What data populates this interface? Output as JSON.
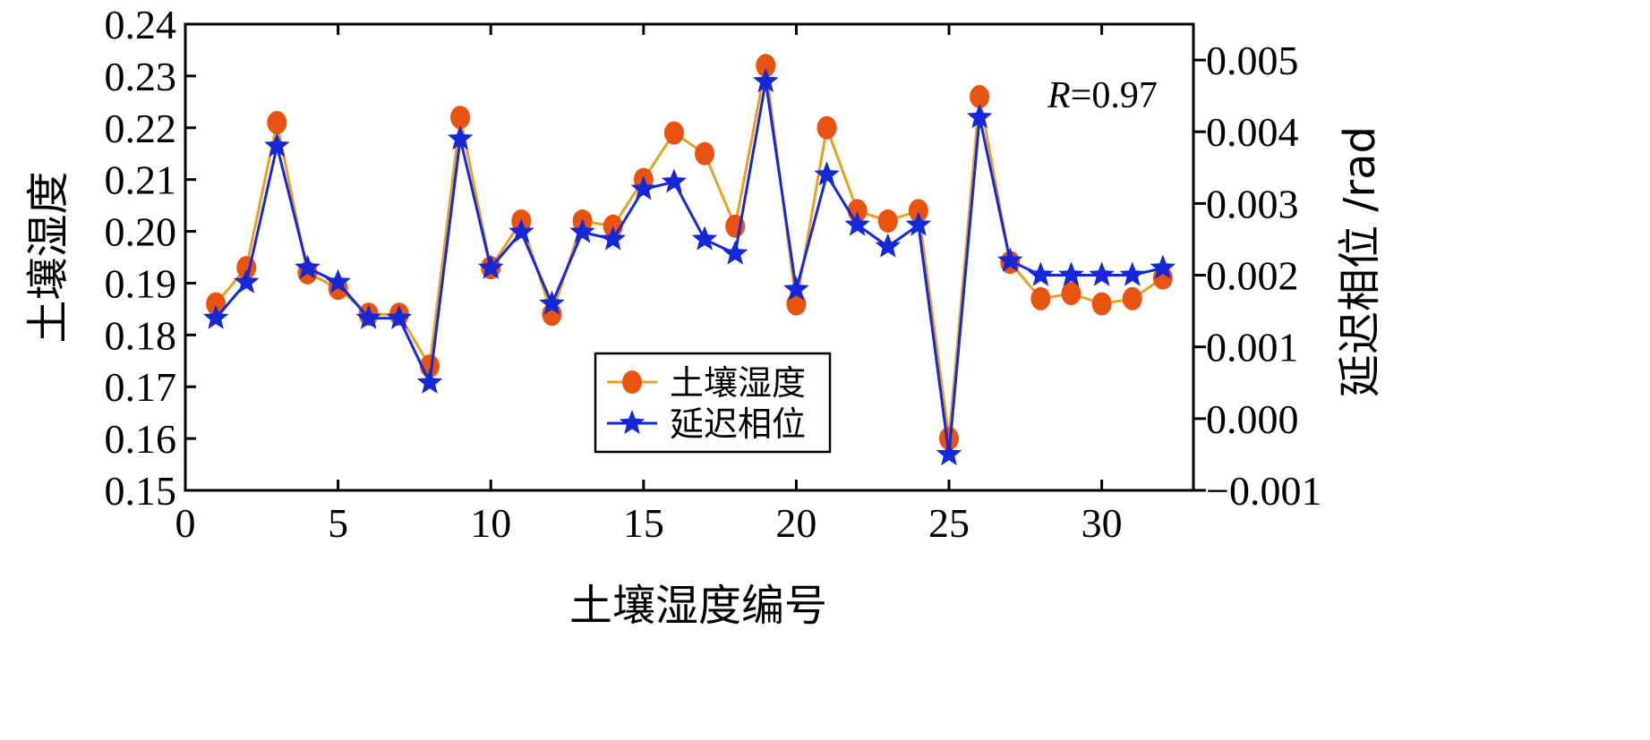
{
  "chart_data": {
    "type": "line",
    "x": [
      1,
      2,
      3,
      4,
      5,
      6,
      7,
      8,
      9,
      10,
      11,
      12,
      13,
      14,
      15,
      16,
      17,
      18,
      19,
      20,
      21,
      22,
      23,
      24,
      25,
      26,
      27,
      28,
      29,
      30,
      31,
      32
    ],
    "series": [
      {
        "name": "土壤湿度",
        "axis": "left",
        "color": "#e8540f",
        "line_color": "#e8a020",
        "marker": "circle",
        "values": [
          0.186,
          0.193,
          0.221,
          0.192,
          0.189,
          0.184,
          0.184,
          0.174,
          0.222,
          0.193,
          0.202,
          0.184,
          0.202,
          0.201,
          0.21,
          0.219,
          0.215,
          0.201,
          0.232,
          0.186,
          0.22,
          0.204,
          0.202,
          0.204,
          0.16,
          0.226,
          0.194,
          0.187,
          0.188,
          0.186,
          0.187,
          0.191
        ]
      },
      {
        "name": "延迟相位",
        "axis": "right",
        "color": "#1428d8",
        "line_color": "#1428d8",
        "marker": "star",
        "values": [
          0.0014,
          0.0019,
          0.0038,
          0.0021,
          0.0019,
          0.0014,
          0.0014,
          0.0005,
          0.0039,
          0.0021,
          0.0026,
          0.0016,
          0.0026,
          0.0025,
          0.0032,
          0.0033,
          0.0025,
          0.0023,
          0.0047,
          0.0018,
          0.0034,
          0.0027,
          0.0024,
          0.0027,
          -0.0005,
          0.0042,
          0.0022,
          0.002,
          0.002,
          0.002,
          0.002,
          0.0021
        ]
      }
    ],
    "xlabel": "土壤湿度编号",
    "ylabel": "土壤湿度",
    "y2label": "延迟相位 /rad",
    "xlim": [
      0,
      33
    ],
    "ylim": [
      0.15,
      0.24
    ],
    "y2lim": [
      -0.001,
      0.0055
    ],
    "xticks": [
      "0",
      "5",
      "10",
      "15",
      "20",
      "25",
      "30"
    ],
    "yticks": [
      "0.15",
      "0.16",
      "0.17",
      "0.18",
      "0.19",
      "0.20",
      "0.21",
      "0.22",
      "0.23",
      "0.24"
    ],
    "y2ticks": [
      "−0.001",
      "0.000",
      "0.001",
      "0.002",
      "0.003",
      "0.004",
      "0.005"
    ],
    "annotation": {
      "italic": "R",
      "rest": "=0.97"
    },
    "grid": false,
    "legend_position": "lower-center"
  }
}
